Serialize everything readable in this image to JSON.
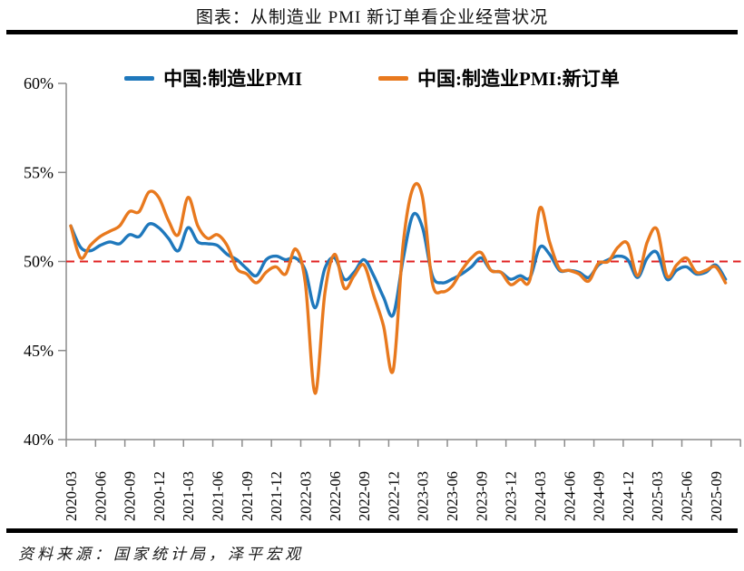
{
  "header": {
    "title": "图表：从制造业 PMI 新订单看企业经营状况"
  },
  "legend": [
    {
      "label": "中国:制造业PMI",
      "color": "#1F78BC"
    },
    {
      "label": "中国:制造业PMI:新订单",
      "color": "#E8791E"
    }
  ],
  "footer": {
    "source": "资料来源：国家统计局，泽平宏观"
  },
  "chart_data": {
    "type": "line",
    "title": "从制造业PMI新订单看企业经营状况",
    "xlabel": "",
    "ylabel": "",
    "ylim": [
      40,
      60
    ],
    "grid": false,
    "legend_position": "top",
    "y_ticks": [
      40,
      45,
      50,
      55,
      60
    ],
    "y_tick_labels": [
      "40%",
      "45%",
      "50%",
      "55%",
      "60%"
    ],
    "x_tick_labels": [
      "2020-03",
      "2020-06",
      "2020-09",
      "2020-12",
      "2021-03",
      "2021-06",
      "2021-09",
      "2021-12",
      "2022-03",
      "2022-06",
      "2022-09",
      "2022-12",
      "2023-03",
      "2023-06",
      "2023-09",
      "2023-12",
      "2024-03",
      "2024-06",
      "2024-09",
      "2024-12",
      "2025-03",
      "2025-06",
      "2025-09"
    ],
    "x": [
      "2020-03",
      "2020-04",
      "2020-05",
      "2020-06",
      "2020-07",
      "2020-08",
      "2020-09",
      "2020-10",
      "2020-11",
      "2020-12",
      "2021-01",
      "2021-02",
      "2021-03",
      "2021-04",
      "2021-05",
      "2021-06",
      "2021-07",
      "2021-08",
      "2021-09",
      "2021-10",
      "2021-11",
      "2021-12",
      "2022-01",
      "2022-02",
      "2022-03",
      "2022-04",
      "2022-05",
      "2022-06",
      "2022-07",
      "2022-08",
      "2022-09",
      "2022-10",
      "2022-11",
      "2022-12",
      "2023-01",
      "2023-02",
      "2023-03",
      "2023-04",
      "2023-05",
      "2023-06",
      "2023-07",
      "2023-08",
      "2023-09",
      "2023-10",
      "2023-11",
      "2023-12",
      "2024-01",
      "2024-02",
      "2024-03",
      "2024-04",
      "2024-05",
      "2024-06",
      "2024-07",
      "2024-08",
      "2024-09",
      "2024-10",
      "2024-11",
      "2024-12",
      "2025-01",
      "2025-02",
      "2025-03",
      "2025-04",
      "2025-05",
      "2025-06",
      "2025-07",
      "2025-08",
      "2025-09",
      "2025-10"
    ],
    "series": [
      {
        "name": "中国:制造业PMI",
        "color": "#1F78BC",
        "values": [
          52.0,
          50.8,
          50.6,
          50.9,
          51.1,
          51.0,
          51.5,
          51.4,
          52.1,
          51.9,
          51.3,
          50.6,
          51.9,
          51.1,
          51.0,
          50.9,
          50.4,
          50.1,
          49.6,
          49.2,
          50.1,
          50.3,
          50.1,
          50.2,
          49.5,
          47.4,
          49.6,
          50.2,
          49.0,
          49.4,
          50.1,
          49.2,
          48.0,
          47.0,
          50.1,
          52.6,
          51.9,
          49.2,
          48.8,
          49.0,
          49.3,
          49.7,
          50.2,
          49.5,
          49.4,
          49.0,
          49.2,
          49.1,
          50.8,
          50.4,
          49.5,
          49.5,
          49.4,
          49.1,
          49.8,
          50.1,
          50.3,
          50.1,
          49.1,
          50.2,
          50.5,
          49.0,
          49.5,
          49.7,
          49.3,
          49.4,
          49.8,
          49.0
        ]
      },
      {
        "name": "中国:制造业PMI:新订单",
        "color": "#E8791E",
        "values": [
          52.0,
          50.2,
          50.9,
          51.4,
          51.7,
          52.0,
          52.8,
          52.8,
          53.9,
          53.6,
          52.3,
          51.5,
          53.6,
          52.0,
          51.3,
          51.5,
          50.9,
          49.6,
          49.3,
          48.8,
          49.4,
          49.7,
          49.3,
          50.7,
          48.8,
          42.6,
          48.2,
          50.4,
          48.5,
          49.2,
          49.8,
          48.1,
          46.4,
          43.9,
          50.9,
          54.1,
          53.6,
          48.8,
          48.3,
          48.6,
          49.5,
          50.2,
          50.5,
          49.5,
          49.4,
          48.7,
          49.0,
          49.0,
          53.0,
          51.1,
          49.6,
          49.5,
          49.3,
          48.9,
          49.9,
          50.0,
          50.8,
          51.0,
          49.2,
          51.1,
          51.8,
          49.2,
          49.8,
          50.2,
          49.4,
          49.5,
          49.7,
          48.8
        ]
      }
    ],
    "reference_line": {
      "value": 50,
      "label": "50%",
      "style": "dashed",
      "color": "#E02121"
    },
    "colors": {
      "axis": "#8C8C8C",
      "reference": "#E02121"
    }
  }
}
